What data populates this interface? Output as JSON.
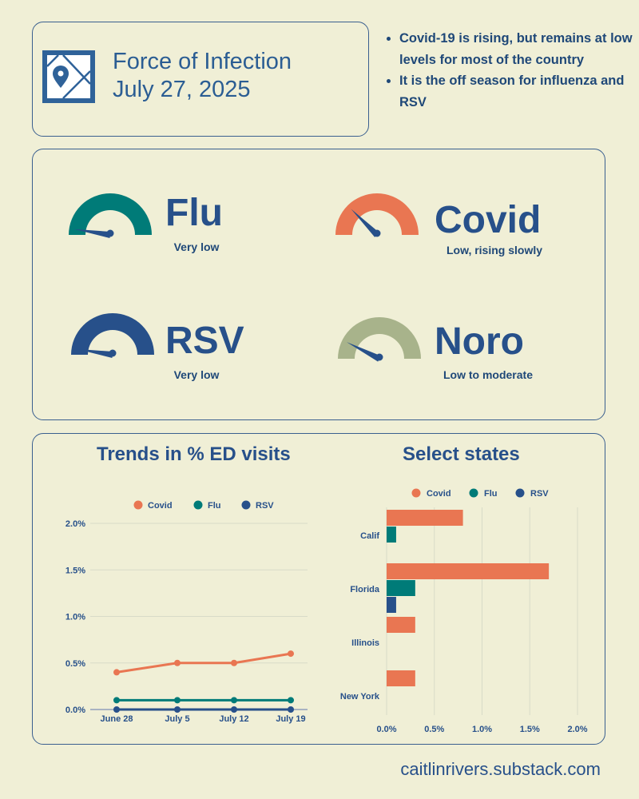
{
  "header": {
    "title_line1": "Force of Infection",
    "title_line2": "July 27, 2025",
    "icon": "map-pin-icon"
  },
  "bullets": [
    "Covid-19 is rising, but remains at low levels for most of the country",
    "It is the off season for influenza and RSV"
  ],
  "gauges": [
    {
      "name": "Flu",
      "status": "Very low",
      "level": 0.05,
      "color": "#007b78"
    },
    {
      "name": "Covid",
      "status": "Low, rising slowly",
      "level": 0.25,
      "color": "#e97652"
    },
    {
      "name": "RSV",
      "status": "Very low",
      "level": 0.05,
      "color": "#27508a"
    },
    {
      "name": "Noro",
      "status": "Low to moderate",
      "level": 0.15,
      "color": "#a8b38b"
    }
  ],
  "colors": {
    "Covid": "#e97652",
    "Flu": "#007b78",
    "RSV": "#27508a",
    "needle": "#27508a"
  },
  "chart_data": [
    {
      "type": "line",
      "title": "Trends in % ED visits",
      "categories": [
        "June 28",
        "July 5",
        "July 12",
        "July 19"
      ],
      "series": [
        {
          "name": "Covid",
          "values": [
            0.4,
            0.5,
            0.5,
            0.6
          ]
        },
        {
          "name": "Flu",
          "values": [
            0.1,
            0.1,
            0.1,
            0.1
          ]
        },
        {
          "name": "RSV",
          "values": [
            0.0,
            0.0,
            0.0,
            0.0
          ]
        }
      ],
      "yticks": [
        "0.0%",
        "0.5%",
        "1.0%",
        "1.5%",
        "2.0%"
      ],
      "ylim": [
        0,
        2
      ],
      "legend": "top",
      "grid": true
    },
    {
      "type": "bar",
      "orientation": "horizontal",
      "title": "Select states",
      "categories": [
        "Calif",
        "Florida",
        "Illinois",
        "New York"
      ],
      "series": [
        {
          "name": "Covid",
          "values": [
            0.8,
            1.7,
            0.3,
            0.3
          ]
        },
        {
          "name": "Flu",
          "values": [
            0.1,
            0.3,
            0,
            0
          ]
        },
        {
          "name": "RSV",
          "values": [
            0,
            0.1,
            0,
            0
          ]
        }
      ],
      "xticks": [
        "0.0%",
        "0.5%",
        "1.0%",
        "1.5%",
        "2.0%"
      ],
      "xlim": [
        0,
        2
      ],
      "legend": "top",
      "grid": true
    }
  ],
  "footer": "caitlinrivers.substack.com"
}
